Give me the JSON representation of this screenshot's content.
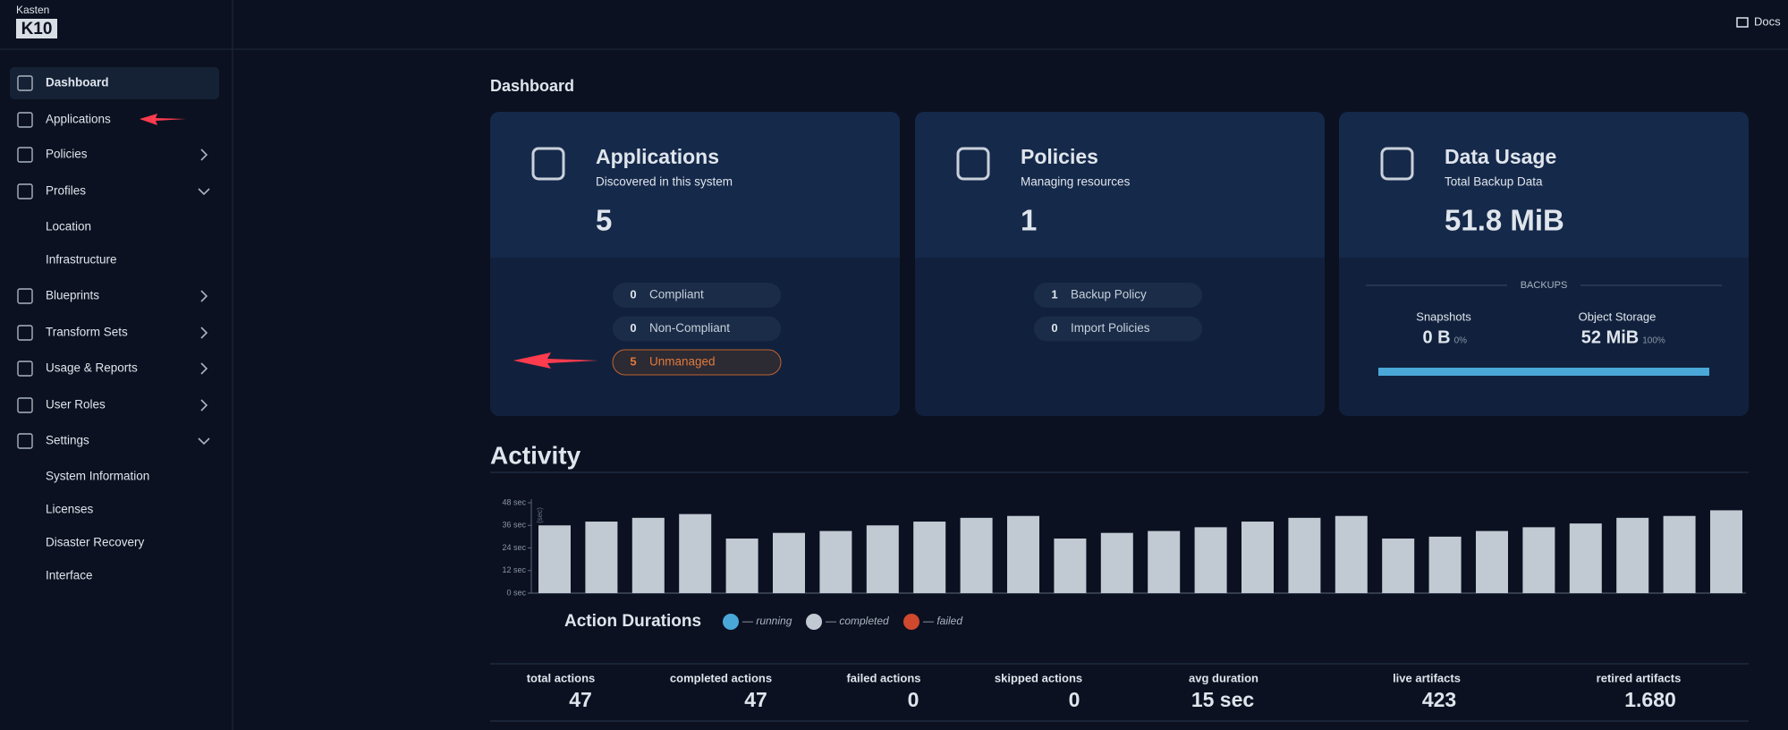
{
  "header": {
    "brand_top": "Kasten",
    "brand_logo": "K10",
    "docs": "Docs"
  },
  "sidebar": {
    "nav": [
      {
        "label": "Dashboard"
      },
      {
        "label": "Applications"
      },
      {
        "label": "Policies"
      },
      {
        "label": "Profiles",
        "children": [
          "Location",
          "Infrastructure"
        ]
      },
      {
        "label": "Blueprints"
      },
      {
        "label": "Transform Sets"
      },
      {
        "label": "Usage & Reports"
      },
      {
        "label": "User Roles"
      },
      {
        "label": "Settings",
        "children": [
          "System Information",
          "Licenses",
          "Disaster Recovery",
          "Interface"
        ]
      }
    ]
  },
  "dashboard": {
    "heading": "Dashboard",
    "cards": [
      {
        "title": "Applications",
        "subtitle": "Discovered in this system",
        "value": 5,
        "pills": [
          {
            "count": 0,
            "label": "Compliant"
          },
          {
            "count": 0,
            "label": "Non-Compliant"
          },
          {
            "count": 5,
            "label": "Unmanaged"
          }
        ]
      },
      {
        "title": "Policies",
        "subtitle": "Managing resources",
        "value": 1,
        "pills": [
          {
            "count": 1,
            "label": "Backup Policy"
          },
          {
            "count": 0,
            "label": "Import Policies"
          }
        ]
      },
      {
        "title": "Data Usage",
        "subtitle": "Total Backup Data",
        "value": "51.8 MiB",
        "section": "BACKUPS",
        "metrics": [
          {
            "label": "Snapshots",
            "value": "0 B",
            "percent": "0%"
          },
          {
            "label": "Object Storage",
            "value": "52 MiB",
            "percent": "100%"
          }
        ]
      }
    ]
  },
  "activity": {
    "heading": "Activity",
    "stats": [
      {
        "label": "total actions",
        "value": 47
      },
      {
        "label": "completed actions",
        "value": 47
      },
      {
        "label": "failed actions",
        "value": 0
      },
      {
        "label": "skipped actions",
        "value": 0
      },
      {
        "label": "avg duration",
        "value": "15 sec"
      },
      {
        "label": "live artifacts",
        "value": 423
      },
      {
        "label": "retired artifacts",
        "value": "1.680"
      }
    ]
  },
  "chart_data": {
    "type": "bar",
    "title": "Action Durations",
    "y_label": "(sec)",
    "color": "#c1c9d2",
    "values": [
      36,
      38,
      40,
      42,
      29,
      32,
      33,
      36,
      38,
      40,
      41,
      29,
      32,
      33,
      35,
      38,
      40,
      41,
      29,
      30,
      33,
      35,
      37,
      40,
      41,
      44
    ],
    "ylim": [
      0,
      48
    ],
    "yticks": [
      {
        "value": 0,
        "label": "0 sec"
      },
      {
        "value": 12,
        "label": "12 sec"
      },
      {
        "value": 24,
        "label": "24 sec"
      },
      {
        "value": 36,
        "label": "36 sec"
      },
      {
        "value": 48,
        "label": "48 sec"
      }
    ],
    "legend": [
      {
        "name": "— running",
        "color": "#4aa8d8"
      },
      {
        "name": "— completed",
        "color": "#c1c9d2"
      },
      {
        "name": "— failed",
        "color": "#d0482e"
      }
    ]
  }
}
